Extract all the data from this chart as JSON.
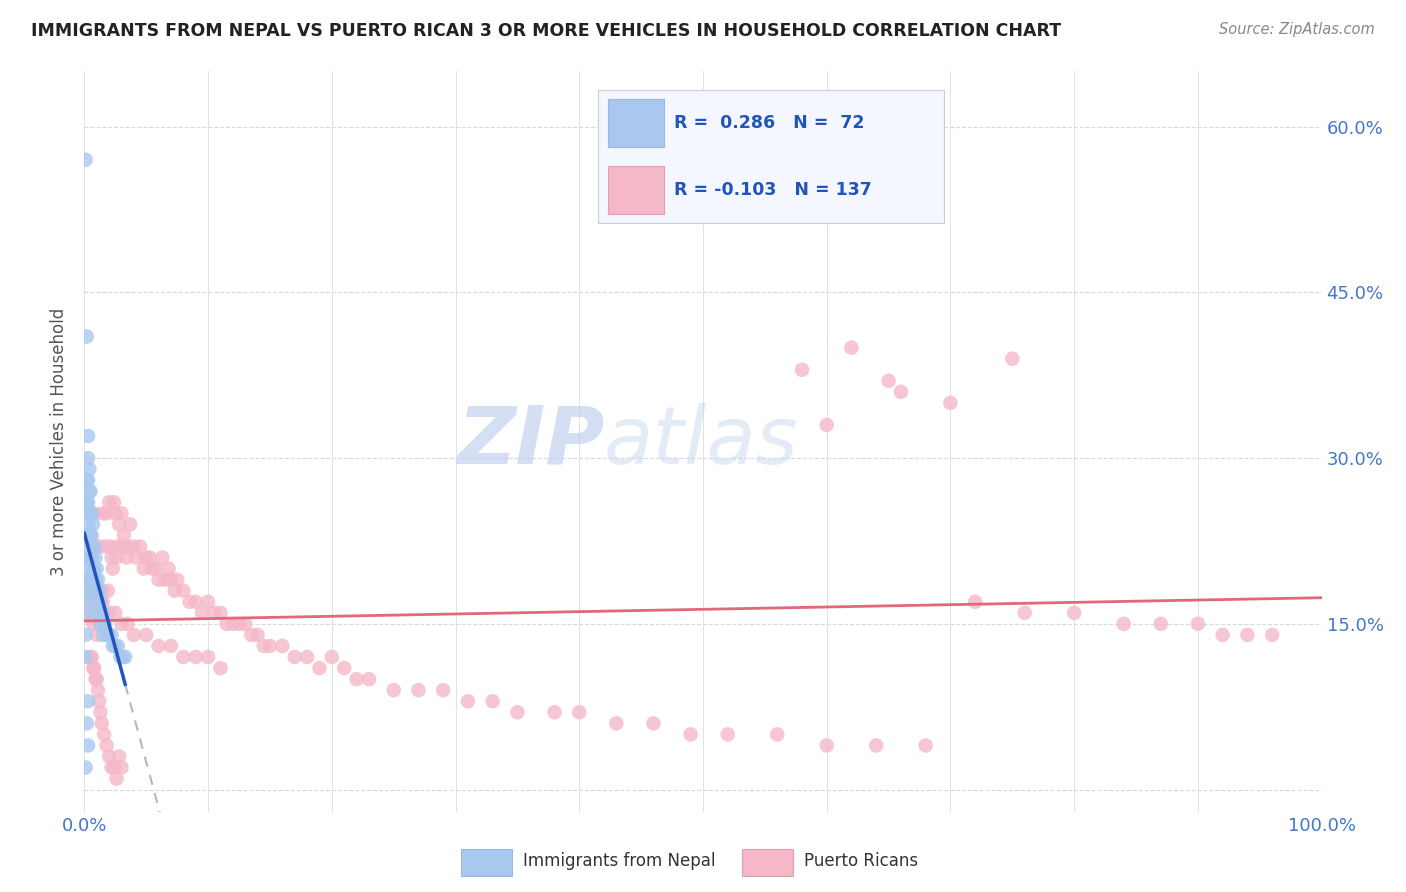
{
  "title": "IMMIGRANTS FROM NEPAL VS PUERTO RICAN 3 OR MORE VEHICLES IN HOUSEHOLD CORRELATION CHART",
  "source": "Source: ZipAtlas.com",
  "ylabel": "3 or more Vehicles in Household",
  "xlim": [
    0,
    1.0
  ],
  "ylim": [
    -0.02,
    0.65
  ],
  "nepal_R": 0.286,
  "nepal_N": 72,
  "pr_R": -0.103,
  "pr_N": 137,
  "nepal_color": "#a8c8f0",
  "pr_color": "#f4b8c8",
  "nepal_line_color": "#2255bb",
  "pr_line_color": "#e06878",
  "dash_color": "#b0b8c8",
  "watermark_color": "#d0ddf0",
  "nepal_x": [
    0.001,
    0.001,
    0.001,
    0.001,
    0.001,
    0.002,
    0.002,
    0.002,
    0.002,
    0.002,
    0.002,
    0.002,
    0.003,
    0.003,
    0.003,
    0.003,
    0.003,
    0.003,
    0.003,
    0.004,
    0.004,
    0.004,
    0.004,
    0.004,
    0.004,
    0.005,
    0.005,
    0.005,
    0.005,
    0.005,
    0.006,
    0.006,
    0.006,
    0.006,
    0.007,
    0.007,
    0.007,
    0.007,
    0.008,
    0.008,
    0.008,
    0.009,
    0.009,
    0.01,
    0.01,
    0.01,
    0.011,
    0.011,
    0.012,
    0.012,
    0.013,
    0.013,
    0.014,
    0.015,
    0.015,
    0.016,
    0.017,
    0.018,
    0.019,
    0.02,
    0.022,
    0.023,
    0.025,
    0.027,
    0.029,
    0.031,
    0.033,
    0.002,
    0.002,
    0.003,
    0.003,
    0.001
  ],
  "nepal_y": [
    0.57,
    0.18,
    0.16,
    0.14,
    0.12,
    0.28,
    0.26,
    0.25,
    0.23,
    0.21,
    0.19,
    0.17,
    0.32,
    0.3,
    0.28,
    0.26,
    0.24,
    0.22,
    0.2,
    0.29,
    0.27,
    0.25,
    0.23,
    0.21,
    0.19,
    0.27,
    0.25,
    0.23,
    0.21,
    0.19,
    0.25,
    0.23,
    0.21,
    0.19,
    0.24,
    0.22,
    0.2,
    0.18,
    0.22,
    0.2,
    0.18,
    0.21,
    0.19,
    0.2,
    0.18,
    0.16,
    0.19,
    0.17,
    0.18,
    0.16,
    0.17,
    0.15,
    0.16,
    0.16,
    0.14,
    0.15,
    0.15,
    0.14,
    0.14,
    0.14,
    0.14,
    0.13,
    0.13,
    0.13,
    0.12,
    0.12,
    0.12,
    0.41,
    0.06,
    0.08,
    0.04,
    0.02
  ],
  "pr_x": [
    0.003,
    0.004,
    0.005,
    0.006,
    0.007,
    0.008,
    0.008,
    0.009,
    0.01,
    0.01,
    0.011,
    0.012,
    0.012,
    0.013,
    0.014,
    0.015,
    0.015,
    0.016,
    0.017,
    0.018,
    0.019,
    0.02,
    0.021,
    0.022,
    0.023,
    0.024,
    0.025,
    0.026,
    0.027,
    0.028,
    0.03,
    0.031,
    0.032,
    0.034,
    0.035,
    0.037,
    0.04,
    0.042,
    0.045,
    0.048,
    0.05,
    0.053,
    0.055,
    0.058,
    0.06,
    0.063,
    0.065,
    0.068,
    0.07,
    0.073,
    0.075,
    0.08,
    0.085,
    0.09,
    0.095,
    0.1,
    0.105,
    0.11,
    0.115,
    0.12,
    0.125,
    0.13,
    0.135,
    0.14,
    0.145,
    0.15,
    0.16,
    0.17,
    0.18,
    0.19,
    0.2,
    0.21,
    0.22,
    0.23,
    0.25,
    0.27,
    0.29,
    0.31,
    0.33,
    0.35,
    0.38,
    0.4,
    0.43,
    0.46,
    0.49,
    0.52,
    0.56,
    0.6,
    0.64,
    0.68,
    0.72,
    0.76,
    0.8,
    0.84,
    0.87,
    0.9,
    0.92,
    0.94,
    0.96,
    0.005,
    0.007,
    0.009,
    0.011,
    0.013,
    0.006,
    0.008,
    0.01,
    0.012,
    0.014,
    0.016,
    0.018,
    0.02,
    0.022,
    0.024,
    0.026,
    0.028,
    0.03,
    0.015,
    0.02,
    0.025,
    0.03,
    0.035,
    0.04,
    0.05,
    0.06,
    0.07,
    0.08,
    0.09,
    0.1,
    0.11,
    0.58,
    0.62,
    0.66,
    0.7,
    0.75,
    0.65,
    0.6
  ],
  "pr_y": [
    0.18,
    0.17,
    0.16,
    0.16,
    0.15,
    0.17,
    0.25,
    0.16,
    0.18,
    0.14,
    0.17,
    0.16,
    0.22,
    0.15,
    0.16,
    0.18,
    0.25,
    0.15,
    0.22,
    0.25,
    0.18,
    0.26,
    0.22,
    0.21,
    0.2,
    0.26,
    0.25,
    0.21,
    0.22,
    0.24,
    0.25,
    0.22,
    0.23,
    0.21,
    0.22,
    0.24,
    0.22,
    0.21,
    0.22,
    0.2,
    0.21,
    0.21,
    0.2,
    0.2,
    0.19,
    0.21,
    0.19,
    0.2,
    0.19,
    0.18,
    0.19,
    0.18,
    0.17,
    0.17,
    0.16,
    0.17,
    0.16,
    0.16,
    0.15,
    0.15,
    0.15,
    0.15,
    0.14,
    0.14,
    0.13,
    0.13,
    0.13,
    0.12,
    0.12,
    0.11,
    0.12,
    0.11,
    0.1,
    0.1,
    0.09,
    0.09,
    0.09,
    0.08,
    0.08,
    0.07,
    0.07,
    0.07,
    0.06,
    0.06,
    0.05,
    0.05,
    0.05,
    0.04,
    0.04,
    0.04,
    0.17,
    0.16,
    0.16,
    0.15,
    0.15,
    0.15,
    0.14,
    0.14,
    0.14,
    0.12,
    0.11,
    0.1,
    0.09,
    0.07,
    0.12,
    0.11,
    0.1,
    0.08,
    0.06,
    0.05,
    0.04,
    0.03,
    0.02,
    0.02,
    0.01,
    0.03,
    0.02,
    0.17,
    0.16,
    0.16,
    0.15,
    0.15,
    0.14,
    0.14,
    0.13,
    0.13,
    0.12,
    0.12,
    0.12,
    0.11,
    0.38,
    0.4,
    0.36,
    0.35,
    0.39,
    0.37,
    0.33
  ]
}
